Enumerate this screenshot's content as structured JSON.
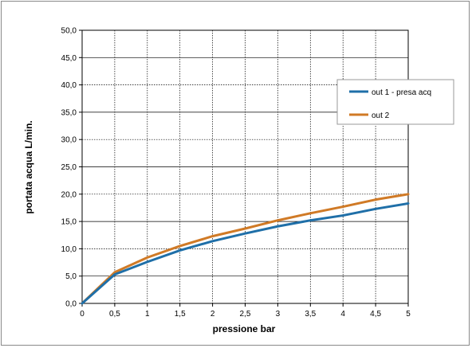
{
  "chart_data": {
    "type": "line",
    "title": "",
    "xlabel": "pressione bar",
    "ylabel": "portata acqua  L/min.",
    "xlim": [
      0,
      5
    ],
    "ylim": [
      0,
      50
    ],
    "x_ticks": [
      "0",
      "0,5",
      "1",
      "1,5",
      "2",
      "2,5",
      "3",
      "3,5",
      "4",
      "4,5",
      "5"
    ],
    "y_ticks": [
      "0,0",
      "5,0",
      "10,0",
      "15,0",
      "20,0",
      "25,0",
      "30,0",
      "35,0",
      "40,0",
      "45,0",
      "50,0"
    ],
    "grid": true,
    "legend_position": "right",
    "x": [
      0,
      0.5,
      1,
      1.5,
      2,
      2.5,
      3,
      3.5,
      4,
      4.5,
      5
    ],
    "series": [
      {
        "name": "out 1 - presa acq",
        "color": "#1f6fa8",
        "values": [
          0,
          5.3,
          7.6,
          9.7,
          11.4,
          12.8,
          14.1,
          15.2,
          16.1,
          17.3,
          18.3
        ]
      },
      {
        "name": "out 2",
        "color": "#d07a26",
        "values": [
          0,
          5.7,
          8.4,
          10.5,
          12.3,
          13.7,
          15.2,
          16.5,
          17.7,
          19.0,
          20.0
        ]
      }
    ]
  }
}
